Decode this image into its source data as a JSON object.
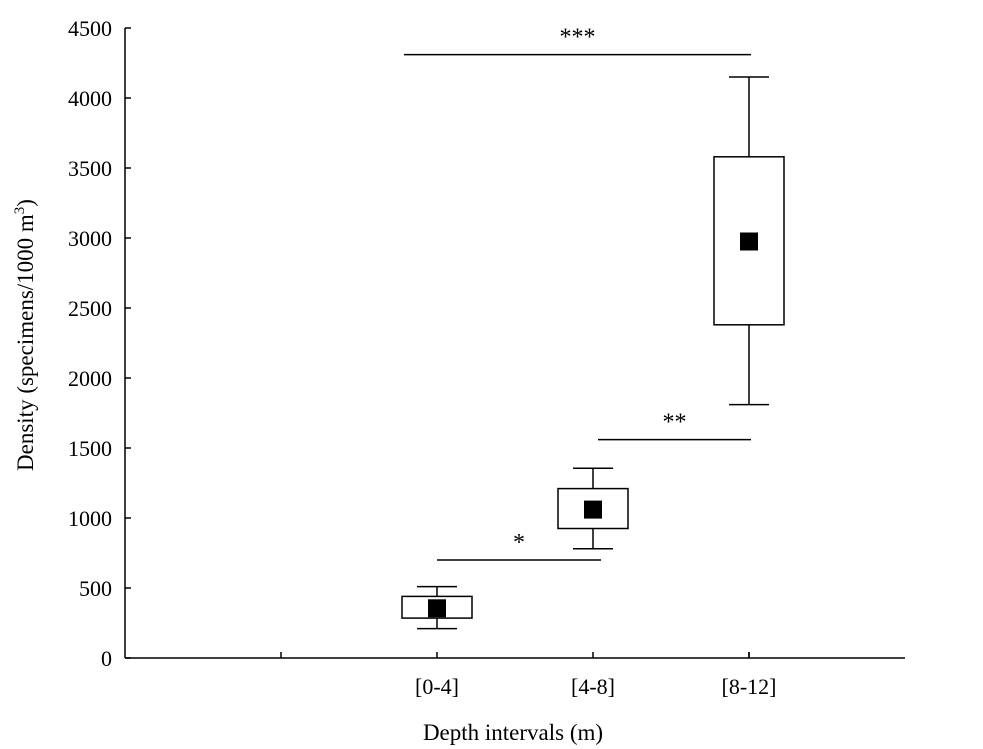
{
  "chart_data": {
    "type": "box",
    "title": "",
    "xlabel": "Depth intervals (m)",
    "ylabel": "Density (specimens/1000 m3)",
    "ylabel_parts": {
      "main": "Density (specimens/1000 m",
      "superscript": "3",
      "tail": ")"
    },
    "ylim": [
      0,
      4500
    ],
    "yticks": [
      0,
      500,
      1000,
      1500,
      2000,
      2500,
      3000,
      3500,
      4000,
      4500
    ],
    "xlim": [
      0,
      5
    ],
    "x_minor_ticks": [
      1,
      4
    ],
    "categories": [
      "[0-4]",
      "[4-8]",
      "[8-12]"
    ],
    "boxes": [
      {
        "label": "[0-4]",
        "whisker_low": 210,
        "q1": 285,
        "mean": 355,
        "q3": 440,
        "whisker_high": 510
      },
      {
        "label": "[4-8]",
        "whisker_low": 780,
        "q1": 925,
        "mean": 1060,
        "q3": 1210,
        "whisker_high": 1355
      },
      {
        "label": "[8-12]",
        "whisker_low": 1810,
        "q1": 2380,
        "mean": 2975,
        "q3": 3580,
        "whisker_high": 4150
      }
    ],
    "significance": [
      {
        "from": "[0-4]",
        "to": "[4-8]",
        "level": 700,
        "label": "*"
      },
      {
        "from": "[4-8]",
        "to": "[8-12]",
        "level": 1560,
        "label": "**"
      },
      {
        "from": "[0-4]",
        "to": "[8-12]",
        "level": 4310,
        "label": "***"
      }
    ],
    "grid": false,
    "legend": "none",
    "colors": {
      "box_fill": "#ffffff",
      "stroke": "#000000",
      "mean_marker": "#000000"
    }
  }
}
